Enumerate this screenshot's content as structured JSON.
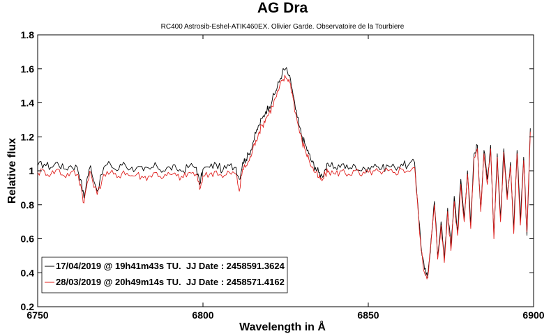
{
  "chart_data": {
    "type": "line",
    "title": "AG Dra",
    "subtitle": "RC400 Astrosib-Eshel-ATIK460EX. Olivier Garde. Observatoire de la Tourbiere",
    "xlabel": "Wavelength in Å",
    "ylabel": "Relative flux",
    "xlim": [
      6750,
      6900
    ],
    "ylim": [
      0.2,
      1.8
    ],
    "xticks": [
      "6750",
      "6800",
      "6850",
      "6900"
    ],
    "yticks": [
      "0.2",
      "0.4",
      "0.6",
      "0.8",
      "1",
      "1.2",
      "1.4",
      "1.6",
      "1.8"
    ],
    "grid": false,
    "legend_position": "bottom-left",
    "series": [
      {
        "name": "17/04/2019 @ 19h41m43s TU.  JJ Date : 2458591.3624",
        "color": "#000000",
        "x": [
          6750,
          6752,
          6754,
          6756,
          6758,
          6760,
          6762,
          6763,
          6764,
          6765,
          6766,
          6768,
          6770,
          6772,
          6774,
          6776,
          6778,
          6780,
          6782,
          6784,
          6786,
          6788,
          6790,
          6792,
          6794,
          6796,
          6798,
          6799,
          6800,
          6802,
          6804,
          6806,
          6808,
          6810,
          6811,
          6812,
          6813,
          6814,
          6815,
          6816,
          6817,
          6818,
          6819,
          6820,
          6821,
          6822,
          6823,
          6824,
          6825,
          6826,
          6827,
          6828,
          6829,
          6830,
          6831,
          6832,
          6833,
          6834,
          6835,
          6836,
          6837,
          6838,
          6840,
          6842,
          6844,
          6846,
          6848,
          6850,
          6852,
          6854,
          6856,
          6858,
          6860,
          6862,
          6864,
          6865,
          6866,
          6867,
          6868,
          6869,
          6870,
          6871,
          6872,
          6873,
          6874,
          6875,
          6876,
          6877,
          6878,
          6879,
          6880,
          6881,
          6882,
          6883,
          6884,
          6885,
          6886,
          6887,
          6888,
          6889,
          6890,
          6891,
          6892,
          6893,
          6894,
          6895,
          6896,
          6897,
          6898,
          6899
        ],
        "y": [
          1.03,
          1.04,
          1.02,
          1.05,
          1.01,
          1.03,
          1.02,
          0.95,
          0.84,
          0.96,
          1.03,
          0.88,
          1.02,
          1.04,
          1.0,
          1.05,
          1.01,
          1.02,
          1.0,
          1.01,
          1.03,
          1.0,
          1.02,
          1.01,
          1.0,
          1.03,
          1.02,
          0.92,
          1.01,
          1.02,
          1.04,
          1.0,
          1.03,
          1.02,
          0.95,
          1.05,
          1.07,
          1.1,
          1.16,
          1.22,
          1.27,
          1.31,
          1.35,
          1.38,
          1.42,
          1.47,
          1.52,
          1.58,
          1.6,
          1.56,
          1.48,
          1.36,
          1.27,
          1.2,
          1.15,
          1.1,
          1.05,
          1.02,
          0.99,
          0.97,
          1.01,
          1.03,
          1.02,
          1.04,
          1.01,
          1.03,
          1.0,
          1.02,
          1.04,
          1.01,
          1.03,
          1.02,
          1.04,
          1.03,
          1.05,
          0.8,
          0.55,
          0.42,
          0.37,
          0.6,
          0.82,
          0.5,
          0.7,
          0.48,
          0.78,
          0.55,
          0.85,
          0.65,
          0.95,
          0.72,
          1.0,
          0.68,
          1.1,
          1.15,
          0.78,
          1.12,
          0.95,
          1.15,
          0.62,
          1.1,
          0.72,
          1.13,
          0.85,
          1.05,
          0.65,
          1.12,
          0.7,
          1.08,
          0.62,
          1.25
        ],
        "stroke_width": 0.9
      },
      {
        "name": "28/03/2019 @ 20h49m14s TU.  JJ Date : 2458571.4162",
        "color": "#e0201e",
        "x": [
          6750,
          6752,
          6754,
          6756,
          6758,
          6760,
          6762,
          6763,
          6764,
          6765,
          6766,
          6768,
          6770,
          6772,
          6774,
          6776,
          6778,
          6780,
          6782,
          6784,
          6786,
          6788,
          6790,
          6792,
          6794,
          6796,
          6798,
          6799,
          6800,
          6802,
          6804,
          6806,
          6808,
          6810,
          6811,
          6812,
          6813,
          6814,
          6815,
          6816,
          6817,
          6818,
          6819,
          6820,
          6821,
          6822,
          6823,
          6824,
          6825,
          6826,
          6827,
          6828,
          6829,
          6830,
          6831,
          6832,
          6833,
          6834,
          6835,
          6836,
          6837,
          6838,
          6840,
          6842,
          6844,
          6846,
          6848,
          6850,
          6852,
          6854,
          6856,
          6858,
          6860,
          6862,
          6864,
          6865,
          6866,
          6867,
          6868,
          6869,
          6870,
          6871,
          6872,
          6873,
          6874,
          6875,
          6876,
          6877,
          6878,
          6879,
          6880,
          6881,
          6882,
          6883,
          6884,
          6885,
          6886,
          6887,
          6888,
          6889,
          6890,
          6891,
          6892,
          6893,
          6894,
          6895,
          6896,
          6897,
          6898,
          6899
        ],
        "y": [
          0.99,
          1.0,
          0.98,
          1.01,
          0.97,
          0.99,
          0.98,
          0.92,
          0.81,
          0.93,
          0.99,
          0.86,
          0.98,
          0.99,
          0.96,
          1.0,
          0.97,
          0.98,
          0.96,
          0.97,
          0.99,
          0.96,
          0.98,
          0.97,
          0.96,
          0.99,
          0.98,
          0.89,
          0.97,
          0.98,
          1.0,
          0.96,
          0.99,
          0.98,
          0.88,
          1.01,
          1.03,
          1.06,
          1.12,
          1.18,
          1.23,
          1.27,
          1.31,
          1.34,
          1.38,
          1.43,
          1.48,
          1.53,
          1.55,
          1.54,
          1.46,
          1.34,
          1.25,
          1.17,
          1.12,
          1.07,
          1.02,
          0.99,
          0.96,
          0.94,
          0.98,
          1.0,
          0.98,
          1.0,
          0.98,
          1.0,
          0.97,
          0.99,
          1.0,
          0.98,
          1.0,
          0.99,
          1.01,
          1.0,
          1.02,
          0.78,
          0.53,
          0.4,
          0.38,
          0.58,
          0.8,
          0.48,
          0.68,
          0.46,
          0.76,
          0.53,
          0.82,
          0.62,
          0.92,
          0.7,
          0.98,
          0.66,
          1.08,
          1.13,
          0.76,
          1.1,
          0.92,
          1.13,
          0.6,
          1.08,
          0.7,
          1.11,
          0.83,
          1.03,
          0.63,
          1.1,
          0.68,
          1.06,
          0.64,
          1.23
        ],
        "stroke_width": 0.9
      }
    ]
  }
}
